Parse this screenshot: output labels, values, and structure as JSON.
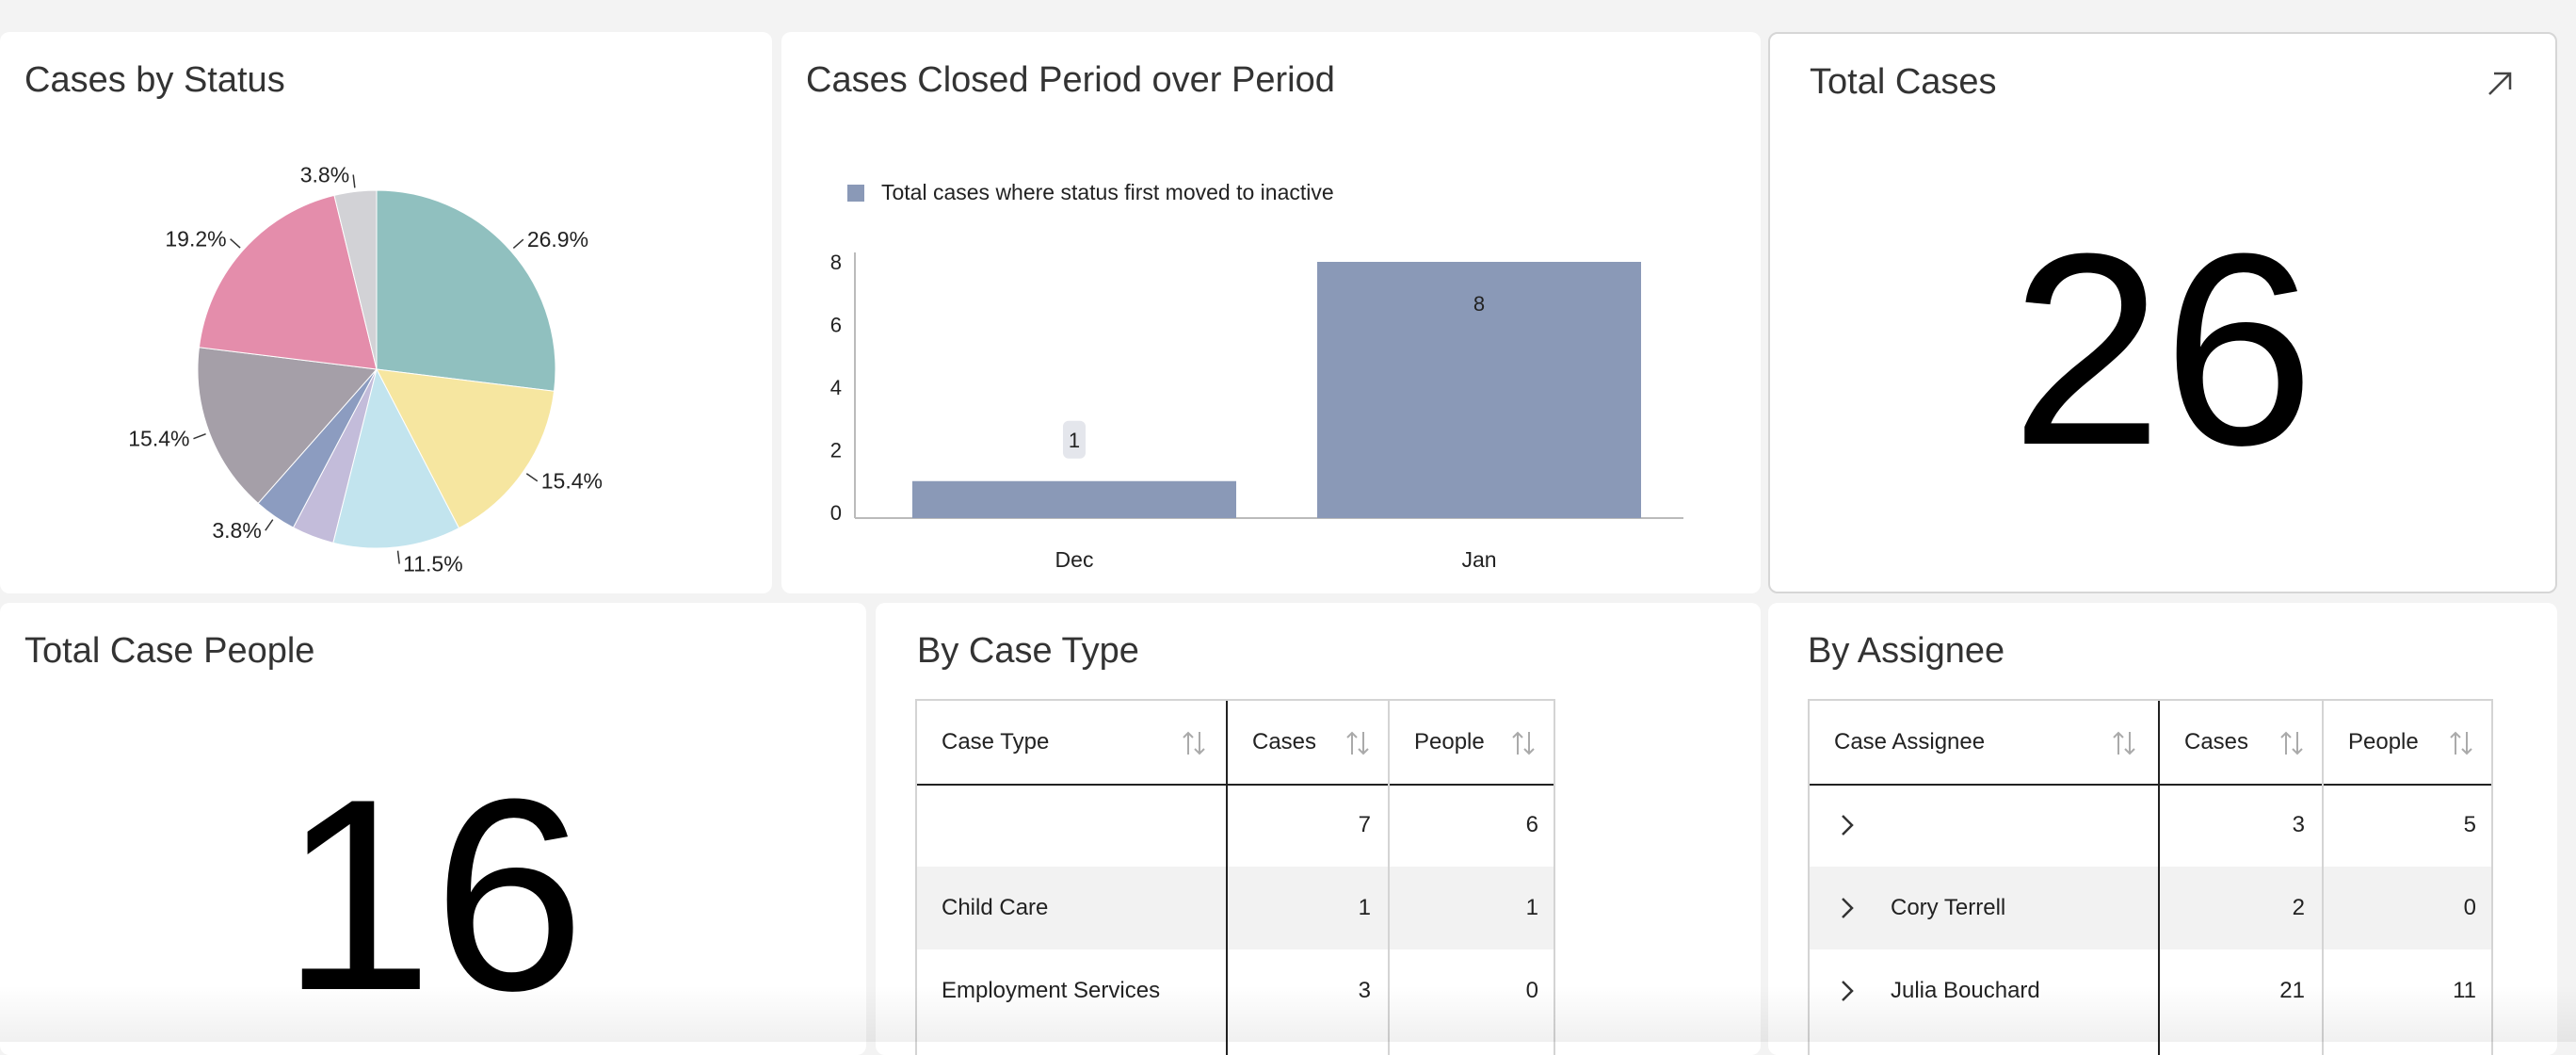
{
  "status_card": {
    "title": "Cases by Status"
  },
  "closed_card": {
    "title": "Cases Closed Period over Period",
    "legend": "Total cases where status first moved to inactive"
  },
  "total_cases_card": {
    "title": "Total Cases",
    "value": "26",
    "expand_icon": "expand-arrow-icon"
  },
  "total_people_card": {
    "title": "Total Case People",
    "value": "16"
  },
  "case_type_card": {
    "title": "By Case Type",
    "columns": [
      "Case Type",
      "Cases",
      "People"
    ],
    "rows": [
      {
        "type": "",
        "cases": "7",
        "people": "6"
      },
      {
        "type": "Child Care",
        "cases": "1",
        "people": "1"
      },
      {
        "type": "Employment Services",
        "cases": "3",
        "people": "0"
      }
    ]
  },
  "assignee_card": {
    "title": "By Assignee",
    "columns": [
      "Case Assignee",
      "Cases",
      "People"
    ],
    "rows": [
      {
        "assignee": "",
        "cases": "3",
        "people": "5"
      },
      {
        "assignee": "Cory Terrell",
        "cases": "2",
        "people": "0"
      },
      {
        "assignee": "Julia Bouchard",
        "cases": "21",
        "people": "11"
      }
    ]
  },
  "colors": {
    "bar": "#8a99b7",
    "pie": [
      "#90c0bf",
      "#f6e6a0",
      "#c2e4ee",
      "#c3bcda",
      "#8c9cc0",
      "#a59fa8",
      "#e48dab",
      "#d2d2d6"
    ]
  },
  "chart_data": [
    {
      "type": "pie",
      "title": "Cases by Status",
      "slices": [
        {
          "value": 26.9,
          "label": "26.9%",
          "color": "#90c0bf"
        },
        {
          "value": 15.4,
          "label": "15.4%",
          "color": "#f6e6a0"
        },
        {
          "value": 11.5,
          "label": "11.5%",
          "color": "#c2e4ee"
        },
        {
          "value": 3.8,
          "label": "",
          "color": "#c3bcda"
        },
        {
          "value": 3.8,
          "label": "3.8%",
          "color": "#8c9cc0"
        },
        {
          "value": 15.4,
          "label": "15.4%",
          "color": "#a59fa8"
        },
        {
          "value": 19.2,
          "label": "19.2%",
          "color": "#e48dab"
        },
        {
          "value": 3.8,
          "label": "3.8%",
          "color": "#d2d2d6"
        }
      ]
    },
    {
      "type": "bar",
      "title": "Cases Closed Period over Period",
      "categories": [
        "Dec",
        "Jan"
      ],
      "series": [
        {
          "name": "Total cases where status first moved to inactive",
          "values": [
            1,
            8
          ]
        }
      ],
      "data_labels": [
        "1",
        "8"
      ],
      "ylim": [
        0,
        8
      ],
      "yticks": [
        0,
        2,
        4,
        6,
        8
      ],
      "grid": false,
      "legend": "top-left"
    }
  ]
}
